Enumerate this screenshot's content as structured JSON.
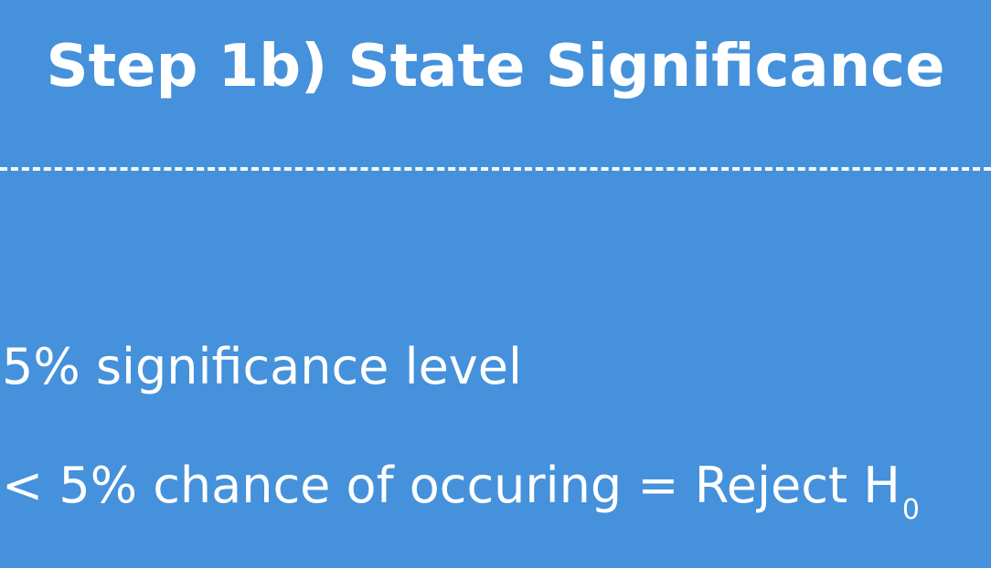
{
  "colors": {
    "background": "#4591db",
    "text": "#ffffff"
  },
  "slide": {
    "title": "Step 1b) State Significance",
    "line1": "5% significance level",
    "line2_main": "< 5% chance of occuring = Reject H",
    "line2_subscript": "0"
  }
}
